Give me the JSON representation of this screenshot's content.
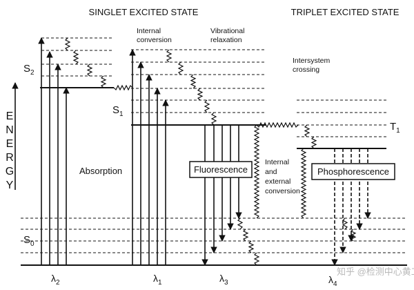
{
  "header": {
    "singlet": "SINGLET EXCITED STATE",
    "triplet": "TRIPLET EXCITED STATE"
  },
  "axis": {
    "label": "ENERGY"
  },
  "states": [
    {
      "name": "S",
      "sub": "2"
    },
    {
      "name": "S",
      "sub": "1"
    },
    {
      "name": "S",
      "sub": "0"
    },
    {
      "name": "T",
      "sub": "1"
    }
  ],
  "annotations": {
    "internal_conversion": [
      "Internal",
      "conversion"
    ],
    "vibrational_relaxation": [
      "Vibrational",
      "relaxation"
    ],
    "intersystem_crossing": [
      "Intersystem",
      "crossing"
    ],
    "internal_external": [
      "Internal",
      "and",
      "external",
      "conversion"
    ]
  },
  "processes": {
    "absorption": "Absorption",
    "fluorescence": "Fluorescence",
    "phosphorescence": "Phosphorescence"
  },
  "wavelengths": [
    {
      "name": "λ",
      "sub": "2"
    },
    {
      "name": "λ",
      "sub": "1"
    },
    {
      "name": "λ",
      "sub": "3"
    },
    {
      "name": "λ",
      "sub": "4"
    }
  ],
  "watermark": "知乎 @检测中心黄工"
}
